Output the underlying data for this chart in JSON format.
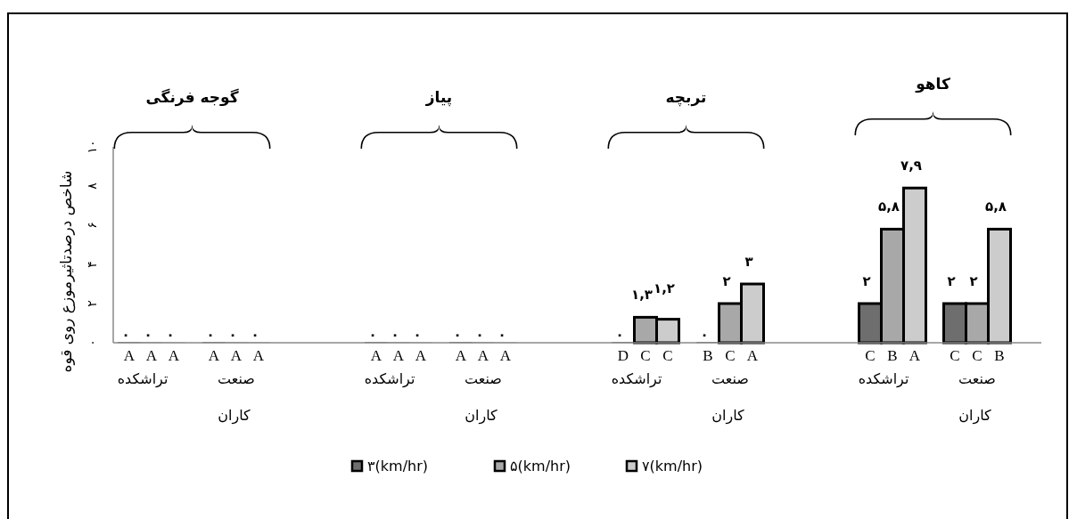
{
  "chart_data": {
    "type": "bar",
    "ylabel": "شاخص درصدتاثیرموزع روی قوه",
    "categories": [
      "تراشکده",
      "صنعت",
      "تراشکده",
      "صنعت",
      "تراشکده",
      "صنعت",
      "تراشکده",
      "صنعت"
    ],
    "series": [
      {
        "name": "۳(km/hr)",
        "color": "#6e6e6e",
        "values": [
          0,
          0,
          0,
          0,
          0,
          0,
          2,
          2
        ],
        "value_labels": [
          "۰",
          "۰",
          "۰",
          "۰",
          "۰",
          "۰",
          "۲",
          "۲"
        ]
      },
      {
        "name": "۵(km/hr)",
        "color": "#a8a8a8",
        "values": [
          0,
          0,
          0,
          0,
          1.3,
          2,
          5.8,
          2
        ],
        "value_labels": [
          "۰",
          "۰",
          "۰",
          "۰",
          "۱,۳",
          "۲",
          "۵,۸",
          "۲"
        ]
      },
      {
        "name": "۷(km/hr)",
        "color": "#cccccc",
        "values": [
          0,
          0,
          0,
          0,
          1.2,
          3,
          7.9,
          5.8
        ],
        "value_labels": [
          "۰",
          "۰",
          "۰",
          "۰",
          "۱,۲",
          "۳",
          "۷,۹",
          "۵,۸"
        ]
      }
    ],
    "ylim": [
      0,
      10
    ],
    "yticks": [
      {
        "value": 0,
        "label": "۰"
      },
      {
        "value": 2,
        "label": "۲"
      },
      {
        "value": 4,
        "label": "۴"
      },
      {
        "value": 6,
        "label": "۶"
      },
      {
        "value": 8,
        "label": "۸"
      },
      {
        "value": 10,
        "label": "۱۰"
      }
    ],
    "grid": false,
    "legend": "bottom",
    "annotations": [
      "گوجه فرنگی",
      "پیاز",
      "تربچه",
      "کاهو",
      "کاران",
      "کاران",
      "کاران",
      "کاران",
      "A",
      "A",
      "A",
      "A",
      "A",
      "A",
      "A",
      "A",
      "A",
      "A",
      "A",
      "A",
      "D",
      "C",
      "C",
      "B",
      "C",
      "A",
      "C",
      "B",
      "A",
      "C",
      "C",
      "B"
    ]
  }
}
